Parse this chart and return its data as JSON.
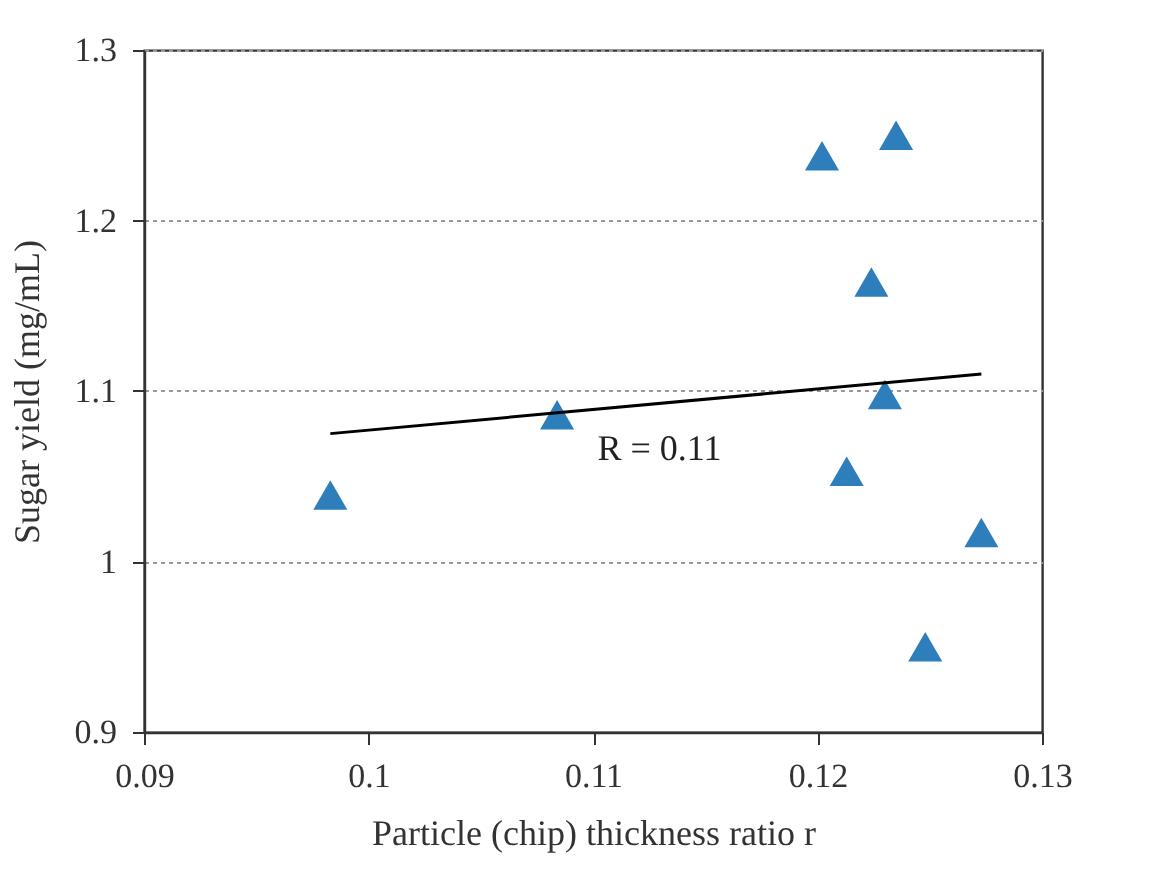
{
  "chart_data": {
    "type": "scatter",
    "xlabel": "Particle (chip) thickness ratio r",
    "ylabel": "Sugar yield (mg/mL)",
    "xlim": [
      0.09,
      0.13
    ],
    "xticks": [
      0.09,
      0.1,
      0.11,
      0.12,
      0.13
    ],
    "ylim": [
      0.9,
      1.3
    ],
    "yticks": [
      0.9,
      1,
      1.1,
      1.2,
      1.3
    ],
    "grid": "y",
    "marker": "triangle",
    "annotations": [
      "R = 0.11"
    ],
    "series": [
      {
        "color": "#2e7ebc",
        "x": [
          0.0983,
          0.1084,
          0.1202,
          0.1235,
          0.1224,
          0.123,
          0.1213,
          0.1273,
          0.1248
        ],
        "values": [
          1.039,
          1.086,
          1.238,
          1.25,
          1.164,
          1.098,
          1.053,
          1.017,
          0.95
        ]
      },
      {
        "type": "line",
        "color": "#000000",
        "marker": "none",
        "line_style": "solid",
        "x": [
          0.0983,
          0.1273
        ],
        "values": [
          1.075,
          1.11
        ]
      }
    ]
  }
}
